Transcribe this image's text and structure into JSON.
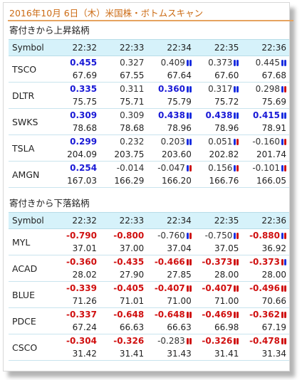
{
  "title": "2016年10月 6日（木）米国株・ボトムスキャン",
  "colors": {
    "positive": "#1a1ad6",
    "negative": "#d01010",
    "header_bg": "#d6f2fa",
    "title": "#cc6b14"
  },
  "legend_note": "bar markers: blue-blue = up, blue-red / red-red = down indicators",
  "sections": [
    {
      "label": "寄付きから上昇銘柄",
      "header": {
        "symbol": "Symbol",
        "times": [
          "22:32",
          "22:33",
          "22:34",
          "22:35",
          "22:36"
        ]
      },
      "rows": [
        {
          "symbol": "TSCO",
          "changes": [
            {
              "text": "0.455",
              "style": "pos",
              "bars": ""
            },
            {
              "text": "0.327",
              "style": "plain",
              "bars": ""
            },
            {
              "text": "0.409",
              "style": "plain",
              "bars": "bb"
            },
            {
              "text": "0.373",
              "style": "plain",
              "bars": "bb"
            },
            {
              "text": "0.445",
              "style": "plain",
              "bars": "bb"
            }
          ],
          "prices": [
            "67.69",
            "67.55",
            "67.64",
            "67.60",
            "67.68"
          ]
        },
        {
          "symbol": "DLTR",
          "changes": [
            {
              "text": "0.335",
              "style": "pos",
              "bars": ""
            },
            {
              "text": "0.311",
              "style": "plain",
              "bars": ""
            },
            {
              "text": "0.360",
              "style": "pos",
              "bars": "bb"
            },
            {
              "text": "0.317",
              "style": "plain",
              "bars": "bb"
            },
            {
              "text": "0.298",
              "style": "plain",
              "bars": "br"
            }
          ],
          "prices": [
            "75.75",
            "75.71",
            "75.79",
            "75.72",
            "75.69"
          ]
        },
        {
          "symbol": "SWKS",
          "changes": [
            {
              "text": "0.309",
              "style": "pos",
              "bars": ""
            },
            {
              "text": "0.309",
              "style": "plain",
              "bars": ""
            },
            {
              "text": "0.438",
              "style": "pos",
              "bars": "bb"
            },
            {
              "text": "0.438",
              "style": "pos",
              "bars": "bb"
            },
            {
              "text": "0.415",
              "style": "pos",
              "bars": "bb"
            }
          ],
          "prices": [
            "78.68",
            "78.68",
            "78.96",
            "78.96",
            "78.91"
          ]
        },
        {
          "symbol": "TSLA",
          "changes": [
            {
              "text": "0.299",
              "style": "pos",
              "bars": ""
            },
            {
              "text": "0.232",
              "style": "plain",
              "bars": ""
            },
            {
              "text": "0.203",
              "style": "plain",
              "bars": "bb"
            },
            {
              "text": "0.051",
              "style": "plain",
              "bars": "br"
            },
            {
              "text": "-0.160",
              "style": "plain",
              "bars": "br"
            }
          ],
          "prices": [
            "204.09",
            "203.75",
            "203.60",
            "202.82",
            "201.74"
          ]
        },
        {
          "symbol": "AMGN",
          "changes": [
            {
              "text": "0.254",
              "style": "pos",
              "bars": ""
            },
            {
              "text": "-0.014",
              "style": "plain",
              "bars": ""
            },
            {
              "text": "-0.047",
              "style": "plain",
              "bars": "br"
            },
            {
              "text": "0.156",
              "style": "plain",
              "bars": "br"
            },
            {
              "text": "-0.101",
              "style": "plain",
              "bars": "br"
            }
          ],
          "prices": [
            "167.03",
            "166.29",
            "166.20",
            "166.76",
            "166.05"
          ]
        }
      ]
    },
    {
      "label": "寄付きから下落銘柄",
      "header": {
        "symbol": "Symbol",
        "times": [
          "22:32",
          "22:33",
          "22:34",
          "22:35",
          "22:36"
        ]
      },
      "rows": [
        {
          "symbol": "MYL",
          "changes": [
            {
              "text": "-0.790",
              "style": "neg",
              "bars": ""
            },
            {
              "text": "-0.800",
              "style": "neg",
              "bars": ""
            },
            {
              "text": "-0.760",
              "style": "plain",
              "bars": "br"
            },
            {
              "text": "-0.750",
              "style": "plain",
              "bars": "br"
            },
            {
              "text": "-0.880",
              "style": "neg",
              "bars": "br"
            }
          ],
          "prices": [
            "37.01",
            "37.00",
            "37.04",
            "37.05",
            "36.92"
          ]
        },
        {
          "symbol": "ACAD",
          "changes": [
            {
              "text": "-0.360",
              "style": "neg",
              "bars": ""
            },
            {
              "text": "-0.435",
              "style": "neg",
              "bars": ""
            },
            {
              "text": "-0.466",
              "style": "neg",
              "bars": "rr"
            },
            {
              "text": "-0.373",
              "style": "neg",
              "bars": "rr"
            },
            {
              "text": "-0.373",
              "style": "neg",
              "bars": "rb"
            }
          ],
          "prices": [
            "28.02",
            "27.90",
            "27.85",
            "28.00",
            "28.00"
          ]
        },
        {
          "symbol": "BLUE",
          "changes": [
            {
              "text": "-0.339",
              "style": "neg",
              "bars": ""
            },
            {
              "text": "-0.405",
              "style": "neg",
              "bars": ""
            },
            {
              "text": "-0.407",
              "style": "neg",
              "bars": "rr"
            },
            {
              "text": "-0.407",
              "style": "neg",
              "bars": "rr"
            },
            {
              "text": "-0.496",
              "style": "neg",
              "bars": "rr"
            }
          ],
          "prices": [
            "71.26",
            "71.01",
            "71.00",
            "71.00",
            "70.66"
          ]
        },
        {
          "symbol": "PDCE",
          "changes": [
            {
              "text": "-0.337",
              "style": "neg",
              "bars": ""
            },
            {
              "text": "-0.648",
              "style": "neg",
              "bars": ""
            },
            {
              "text": "-0.648",
              "style": "neg",
              "bars": "rr"
            },
            {
              "text": "-0.469",
              "style": "neg",
              "bars": "rr"
            },
            {
              "text": "-0.362",
              "style": "neg",
              "bars": "rr"
            }
          ],
          "prices": [
            "67.24",
            "66.63",
            "66.63",
            "66.98",
            "67.19"
          ]
        },
        {
          "symbol": "CSCO",
          "changes": [
            {
              "text": "-0.304",
              "style": "neg",
              "bars": ""
            },
            {
              "text": "-0.326",
              "style": "neg",
              "bars": ""
            },
            {
              "text": "-0.283",
              "style": "plain",
              "bars": "rr"
            },
            {
              "text": "-0.326",
              "style": "neg",
              "bars": "rr"
            },
            {
              "text": "-0.478",
              "style": "neg",
              "bars": "rr"
            }
          ],
          "prices": [
            "31.42",
            "31.41",
            "31.43",
            "31.41",
            "31.34"
          ]
        }
      ]
    }
  ]
}
